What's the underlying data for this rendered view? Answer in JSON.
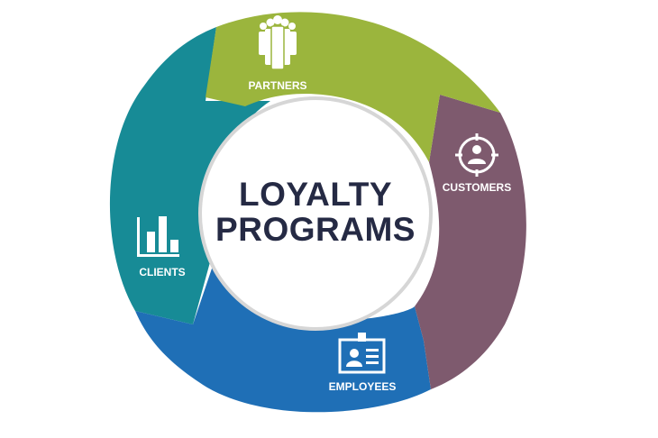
{
  "diagram": {
    "center": {
      "line1": "LOYALTY",
      "line2": "PROGRAMS"
    },
    "segments": [
      {
        "id": "partners",
        "label": "PARTNERS",
        "icon": "people-group-icon",
        "color": "#9bb53d"
      },
      {
        "id": "customers",
        "label": "CUSTOMERS",
        "icon": "person-target-icon",
        "color": "#7e5a6e"
      },
      {
        "id": "employees",
        "label": "EMPLOYEES",
        "icon": "id-badge-icon",
        "color": "#1f6fb6"
      },
      {
        "id": "clients",
        "label": "CLIENTS",
        "icon": "bar-chart-icon",
        "color": "#178b96"
      }
    ]
  }
}
